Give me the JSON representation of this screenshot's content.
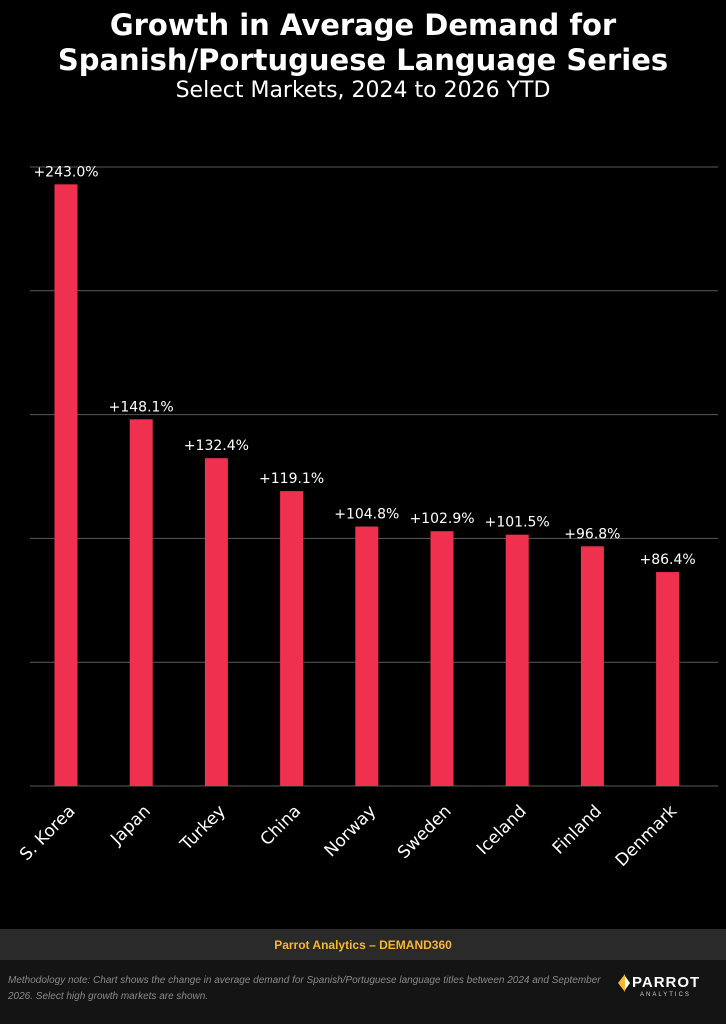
{
  "chart_data": {
    "type": "bar",
    "title_lines": [
      "Growth in Average Demand for",
      "Spanish/Portuguese Language Series"
    ],
    "subtitle": "Select Markets, 2024 to 2026 YTD",
    "categories": [
      "S. Korea",
      "Japan",
      "Turkey",
      "China",
      "Norway",
      "Sweden",
      "Iceland",
      "Finland",
      "Denmark"
    ],
    "values": [
      243.0,
      148.1,
      132.4,
      119.1,
      104.8,
      102.9,
      101.5,
      96.8,
      86.4
    ],
    "data_labels": [
      "+243.0%",
      "+148.1%",
      "+132.4%",
      "+119.1%",
      "+104.8%",
      "+102.9%",
      "+101.5%",
      "+96.8%",
      "+86.4%"
    ],
    "ylim": [
      0,
      250
    ],
    "y_gridlines": [
      0,
      50,
      100,
      150,
      200,
      250
    ],
    "grid": true,
    "bar_color": "#f0304f"
  },
  "footer": {
    "brand": "Parrot Analytics – DEMAND360",
    "note": "Methodology note: Chart shows the change in average demand for Spanish/Portuguese language titles between 2024 and September 2026.  Select high growth markets are shown.",
    "logo_word": "PARROT",
    "logo_sub": "ANALYTICS"
  },
  "colors": {
    "background": "#000000",
    "bar": "#f0304f",
    "gridline": "#5a5a5a",
    "brand": "#f5b82e"
  }
}
